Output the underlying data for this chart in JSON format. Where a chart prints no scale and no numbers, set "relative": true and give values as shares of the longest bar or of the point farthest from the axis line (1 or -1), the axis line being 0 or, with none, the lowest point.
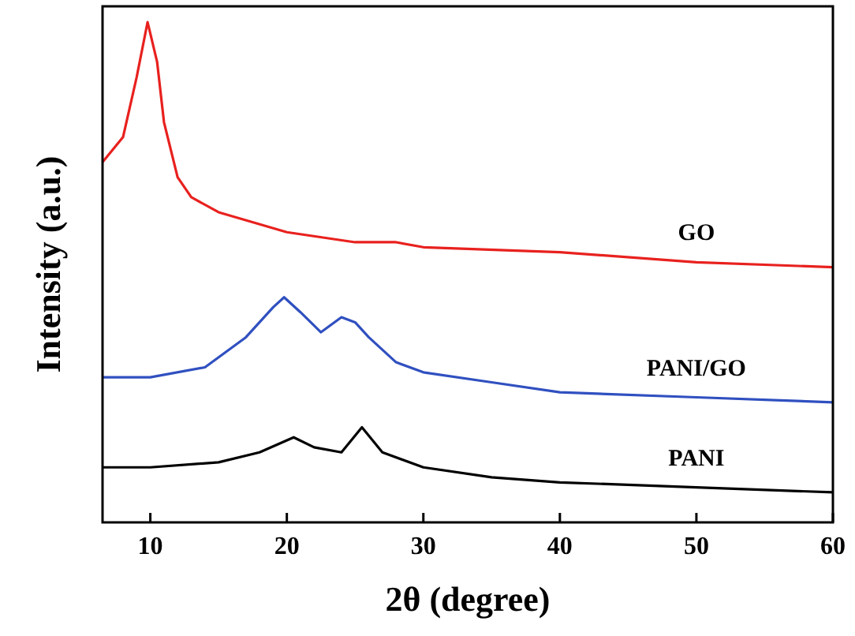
{
  "chart_data": {
    "type": "line",
    "relative": true,
    "xlabel": "2θ (degree)",
    "ylabel": "Intensity (a.u.)",
    "xlim": [
      6.5,
      60
    ],
    "xticks": [
      10,
      20,
      30,
      40,
      50,
      60
    ],
    "grid": false,
    "marker": "none",
    "line_style": "solid",
    "series": [
      {
        "name": "GO",
        "color": "#e8211e",
        "x": [
          6.5,
          8,
          9,
          9.8,
          10.5,
          11,
          12,
          13,
          15,
          20,
          25,
          28,
          30,
          40,
          50,
          60
        ],
        "values": [
          0.72,
          0.77,
          0.89,
          1.0,
          0.92,
          0.8,
          0.69,
          0.65,
          0.62,
          0.58,
          0.56,
          0.56,
          0.55,
          0.54,
          0.52,
          0.51
        ]
      },
      {
        "name": "PANI/GO",
        "color": "#3050c0",
        "x": [
          6.5,
          10,
          14,
          17,
          19,
          19.8,
          21,
          22.5,
          24,
          25,
          26,
          28,
          30,
          35,
          40,
          50,
          60
        ],
        "values": [
          0.29,
          0.29,
          0.31,
          0.37,
          0.43,
          0.45,
          0.42,
          0.38,
          0.41,
          0.4,
          0.37,
          0.32,
          0.3,
          0.28,
          0.26,
          0.25,
          0.24
        ]
      },
      {
        "name": "PANI",
        "color": "#000000",
        "x": [
          6.5,
          10,
          15,
          18,
          20.5,
          22,
          24,
          25.5,
          27,
          30,
          35,
          40,
          50,
          60
        ],
        "values": [
          0.11,
          0.11,
          0.12,
          0.14,
          0.17,
          0.15,
          0.14,
          0.19,
          0.14,
          0.11,
          0.09,
          0.08,
          0.07,
          0.06
        ]
      }
    ]
  }
}
